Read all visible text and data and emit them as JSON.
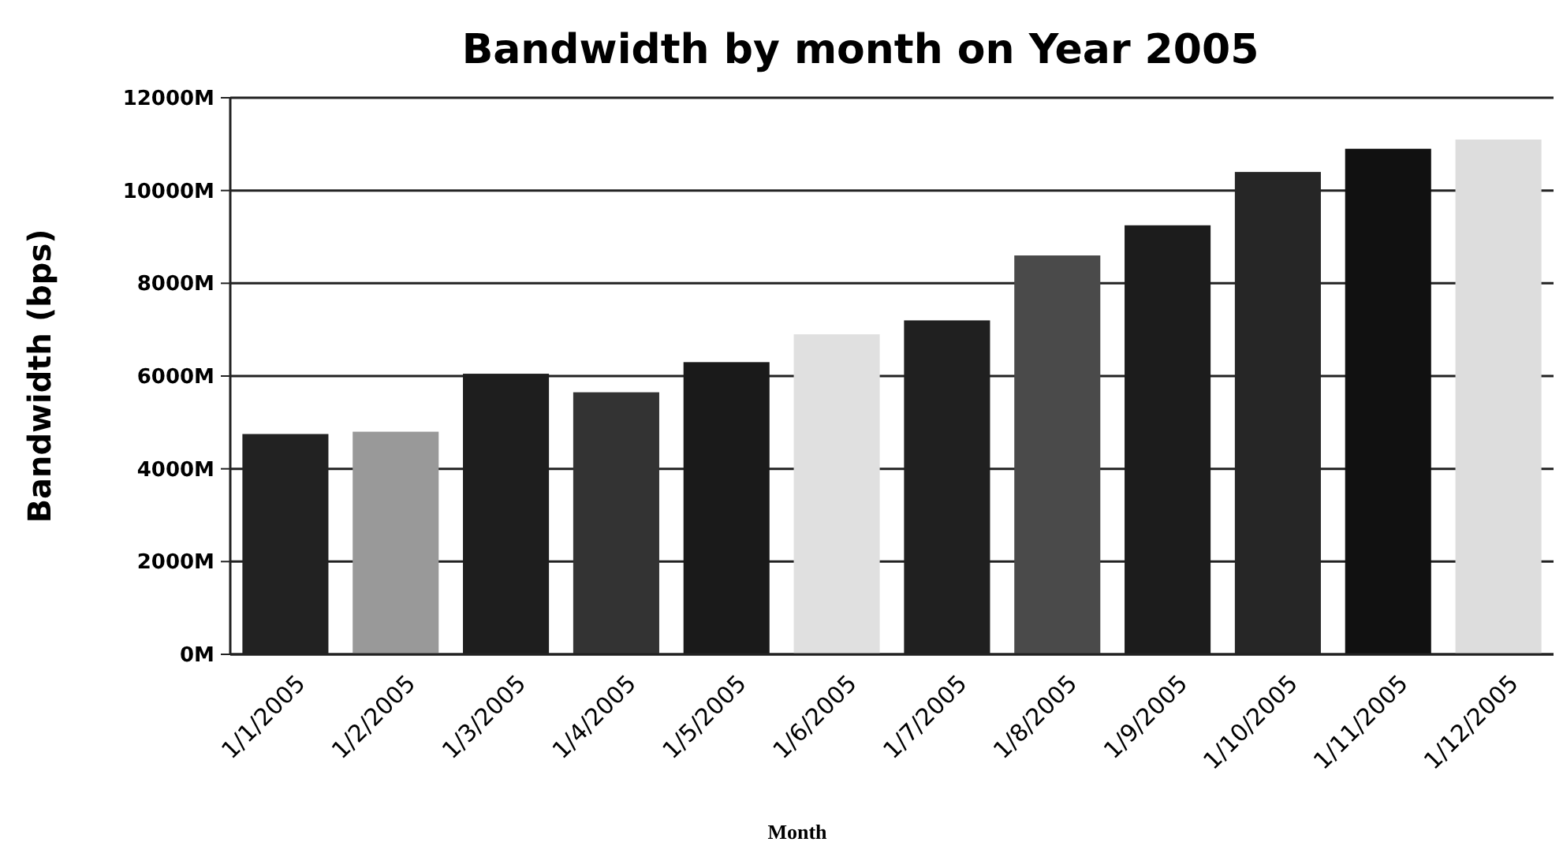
{
  "chart_data": {
    "type": "bar",
    "title": "Bandwidth by month on Year 2005",
    "xlabel": "Month",
    "ylabel": "Bandwidth (bps)",
    "categories": [
      "1/1/2005",
      "1/2/2005",
      "1/3/2005",
      "1/4/2005",
      "1/5/2005",
      "1/6/2005",
      "1/7/2005",
      "1/8/2005",
      "1/9/2005",
      "1/10/2005",
      "1/11/2005",
      "1/12/2005"
    ],
    "values": [
      4750,
      4800,
      6050,
      5650,
      6300,
      6900,
      7200,
      8600,
      9250,
      10400,
      10900,
      11100
    ],
    "colors": [
      "#222222",
      "#999999",
      "#1e1e1e",
      "#333333",
      "#1a1a1a",
      "#e0e0e0",
      "#202020",
      "#4a4a4a",
      "#1c1c1c",
      "#262626",
      "#111111",
      "#dddddd"
    ],
    "ylim": [
      0,
      12000
    ],
    "yticks": [
      {
        "value": 0,
        "label": "0M"
      },
      {
        "value": 2000,
        "label": "2000M"
      },
      {
        "value": 4000,
        "label": "4000M"
      },
      {
        "value": 6000,
        "label": "6000M"
      },
      {
        "value": 8000,
        "label": "8000M"
      },
      {
        "value": 10000,
        "label": "10000M"
      },
      {
        "value": 12000,
        "label": "12000M"
      }
    ],
    "grid": "y"
  }
}
